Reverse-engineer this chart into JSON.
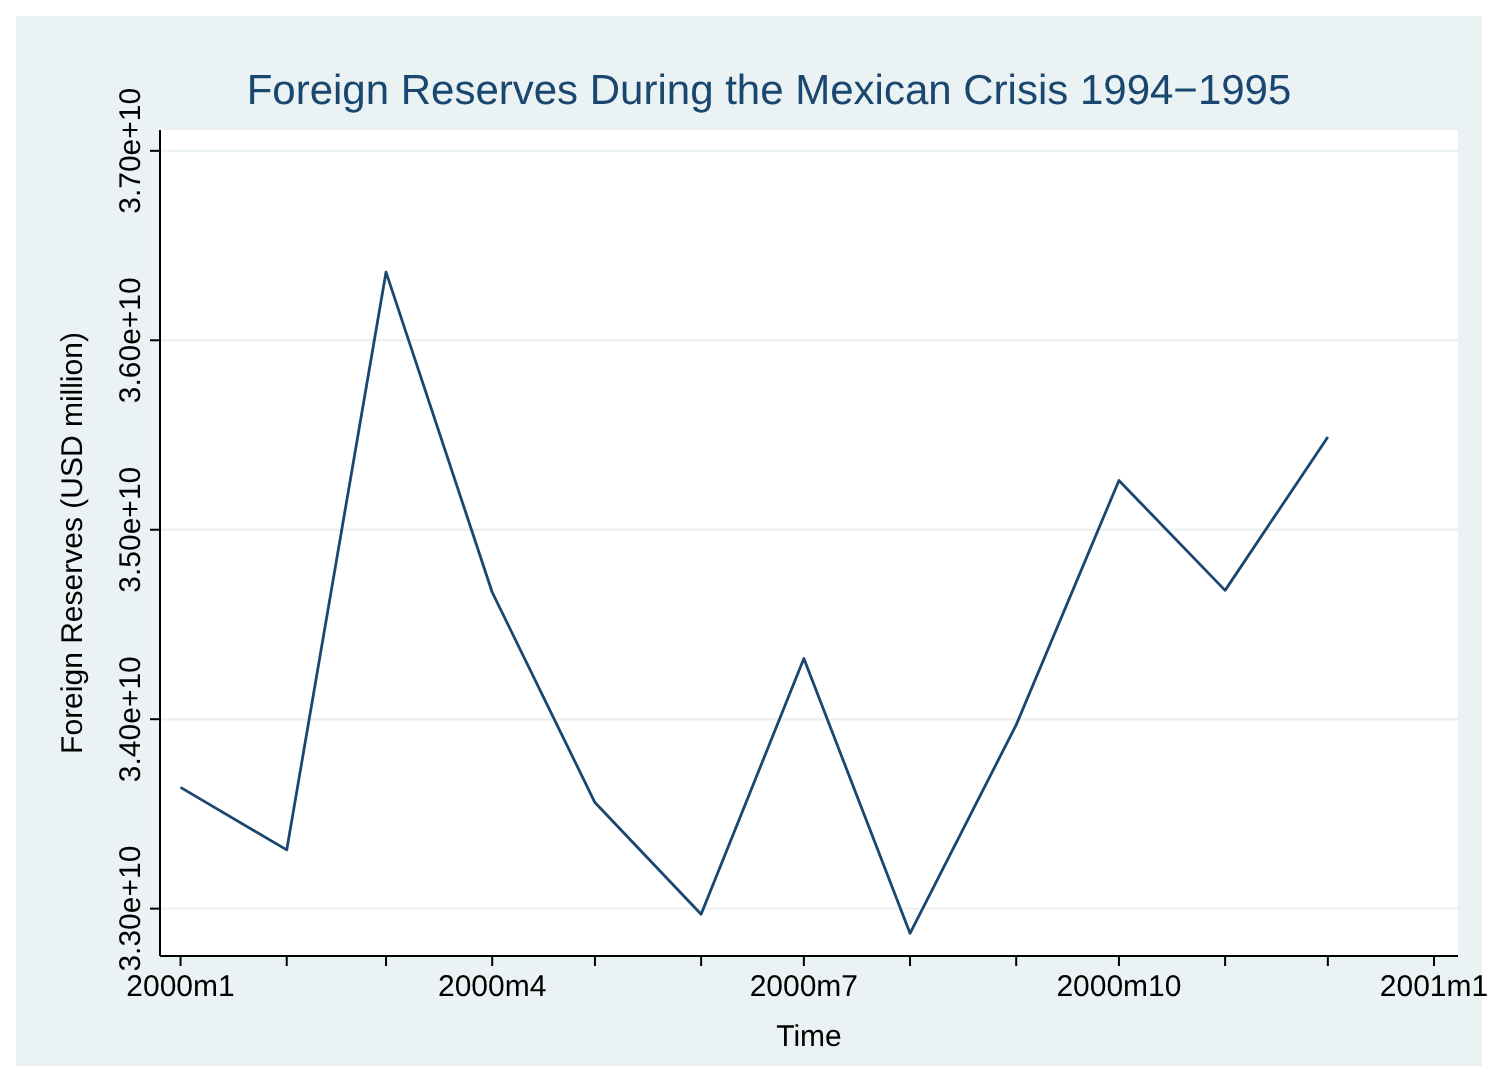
{
  "chart_data": {
    "type": "line",
    "title": "Foreign Reserves During the Mexican Crisis 1994−1995",
    "xlabel": "Time",
    "ylabel": "Foreign Reserves (USD million)",
    "x": [
      "2000-01",
      "2000-02",
      "2000-03",
      "2000-04",
      "2000-05",
      "2000-06",
      "2000-07",
      "2000-08",
      "2000-09",
      "2000-10",
      "2000-11",
      "2000-12"
    ],
    "series": [
      {
        "color": "#1a476f",
        "values": [
          33640000000,
          33310000000,
          36360000000,
          34670000000,
          33560000000,
          32970000000,
          34320000000,
          32870000000,
          33970000000,
          35260000000,
          34680000000,
          35490000000
        ]
      }
    ],
    "xlim": [
      "1999-12-26",
      "2001-01-08"
    ],
    "xticks": [
      {
        "value": "2000-01",
        "label": "2000m1"
      },
      {
        "value": "2000-02",
        "label": null
      },
      {
        "value": "2000-03",
        "label": null
      },
      {
        "value": "2000-04",
        "label": "2000m4"
      },
      {
        "value": "2000-05",
        "label": null
      },
      {
        "value": "2000-06",
        "label": null
      },
      {
        "value": "2000-07",
        "label": "2000m7"
      },
      {
        "value": "2000-08",
        "label": null
      },
      {
        "value": "2000-09",
        "label": null
      },
      {
        "value": "2000-10",
        "label": "2000m10"
      },
      {
        "value": "2000-11",
        "label": null
      },
      {
        "value": "2000-12",
        "label": null
      },
      {
        "value": "2001-01",
        "label": "2001m1"
      }
    ],
    "ylim": [
      32750000000,
      37110000000
    ],
    "yticks": [
      {
        "value": 33000000000,
        "label": "3.30e+10"
      },
      {
        "value": 34000000000,
        "label": "3.40e+10"
      },
      {
        "value": 35000000000,
        "label": "3.50e+10"
      },
      {
        "value": 36000000000,
        "label": "3.60e+10"
      },
      {
        "value": 37000000000,
        "label": "3.70e+10"
      }
    ],
    "grid": "y",
    "marker": "none",
    "line_style": "solid"
  }
}
